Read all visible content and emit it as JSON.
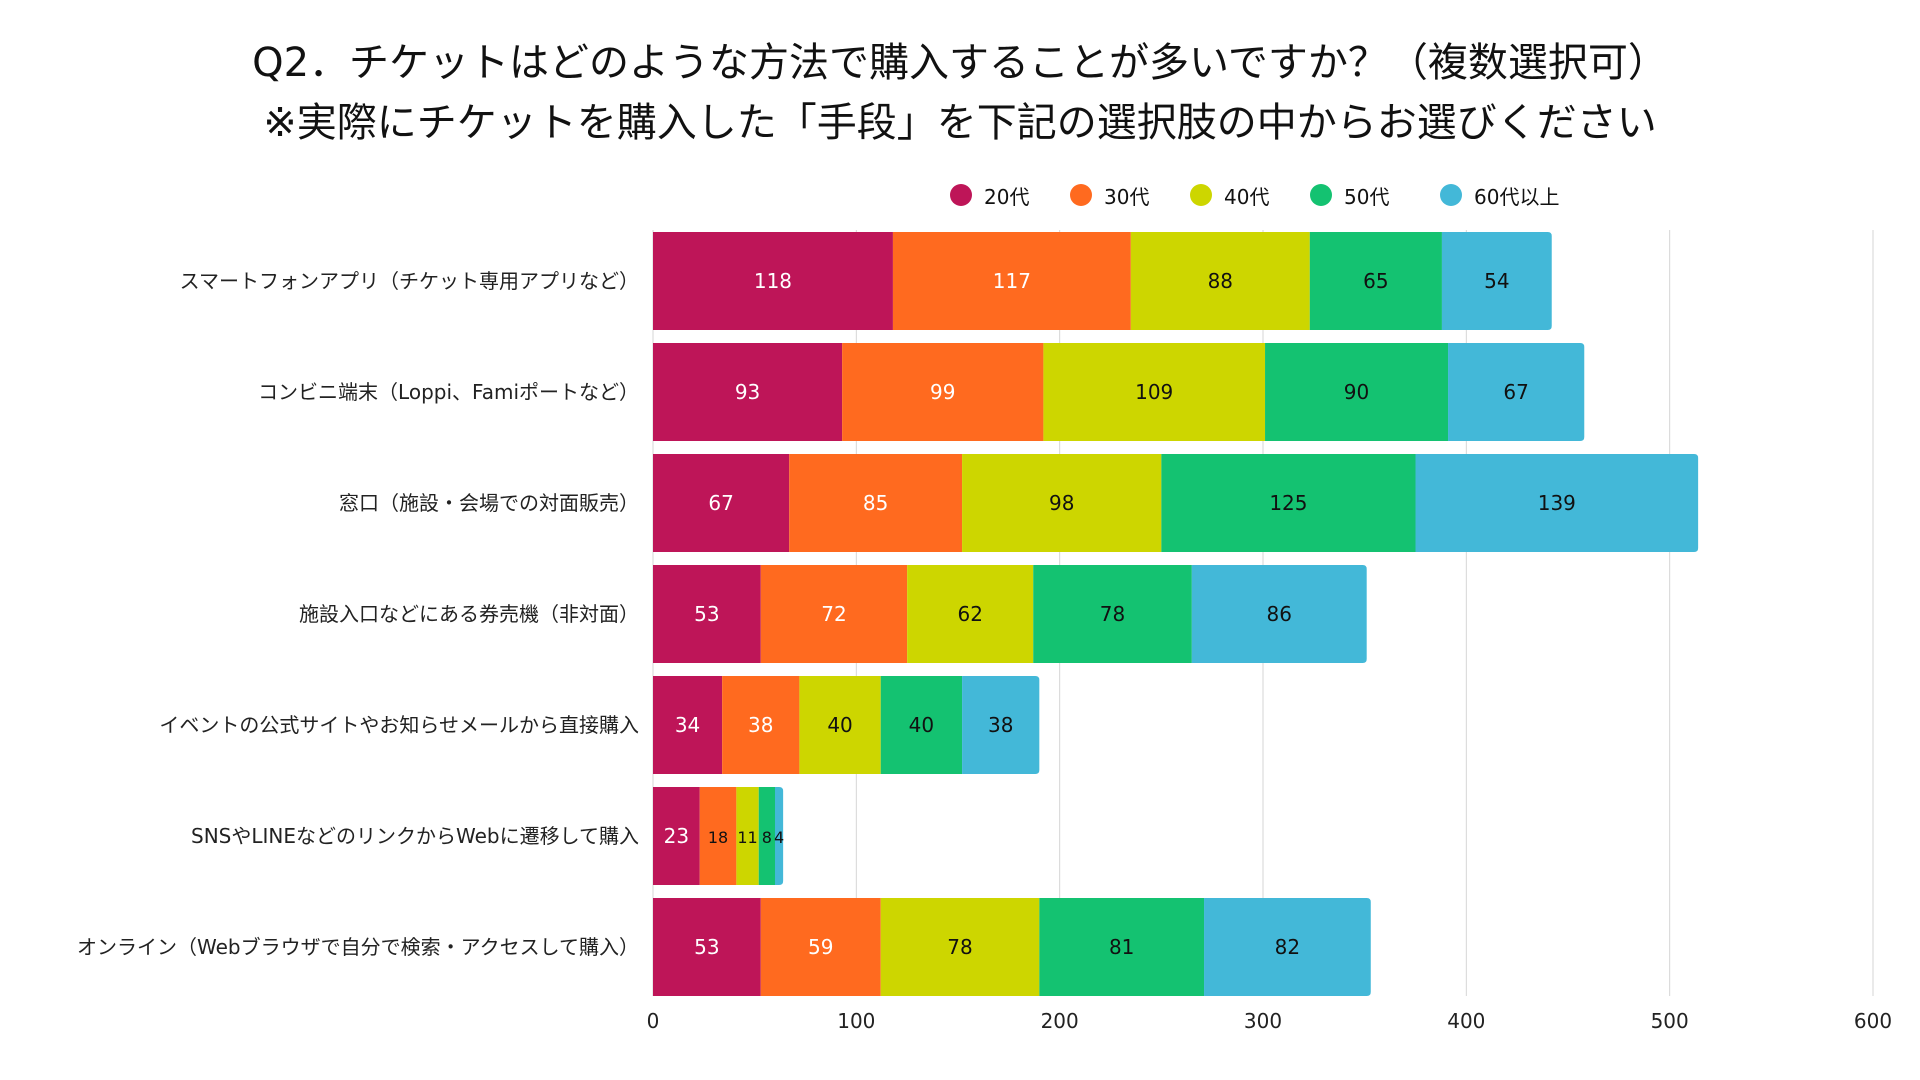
{
  "chart_data": {
    "type": "bar",
    "orientation": "horizontal",
    "stacked": true,
    "title": "Q2．チケットはどのような方法で購入することが多いですか？（複数選択可）",
    "subtitle": "※実際にチケットを購入した「手段」を下記の選択肢の中からお選びください",
    "categories": [
      "スマートフォンアプリ（チケット専用アプリなど）",
      "コンビニ端末（Loppi、Famiポートなど）",
      "窓口（施設・会場での対面販売）",
      "施設入口などにある券売機（非対面）",
      "イベントの公式サイトやお知らせメールから直接購入",
      "SNSやLINEなどのリンクからWebに遷移して購入",
      "オンライン（Webブラウザで自分で検索・アクセスして購入）"
    ],
    "series": [
      {
        "name": "20代",
        "color": "#BE1558",
        "label_color": "#ffffff",
        "values": [
          118,
          93,
          67,
          53,
          34,
          23,
          53
        ]
      },
      {
        "name": "30代",
        "color": "#FF6A1F",
        "label_color": "#ffffff",
        "values": [
          117,
          99,
          85,
          72,
          38,
          18,
          59
        ]
      },
      {
        "name": "40代",
        "color": "#CDD600",
        "label_color": "#111111",
        "values": [
          88,
          109,
          98,
          62,
          40,
          11,
          78
        ]
      },
      {
        "name": "50代",
        "color": "#14C271",
        "label_color": "#111111",
        "values": [
          65,
          90,
          125,
          78,
          40,
          8,
          81
        ]
      },
      {
        "name": "60代以上",
        "color": "#43B8D8",
        "label_color": "#111111",
        "values": [
          54,
          67,
          139,
          86,
          38,
          4,
          82
        ]
      }
    ],
    "xlim": [
      0,
      600
    ],
    "xticks": [
      0,
      100,
      200,
      300,
      400,
      500,
      600
    ],
    "grid": true,
    "legend": "top-right"
  }
}
